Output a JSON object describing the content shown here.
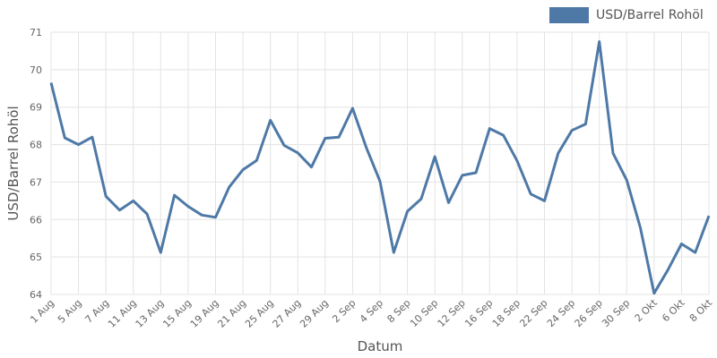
{
  "chart_data": {
    "type": "line",
    "xlabel": "Datum",
    "ylabel": "USD/Barrel Rohöl",
    "ylim": [
      64,
      71
    ],
    "yticks": [
      64,
      65,
      66,
      67,
      68,
      69,
      70,
      71
    ],
    "grid": true,
    "legend_position": "top-right",
    "x_tick_labels": [
      "1 Aug",
      "5 Aug",
      "7 Aug",
      "11 Aug",
      "13 Aug",
      "15 Aug",
      "19 Aug",
      "21 Aug",
      "25 Aug",
      "27 Aug",
      "29 Aug",
      "2 Sep",
      "4 Sep",
      "8 Sep",
      "10 Sep",
      "12 Sep",
      "16 Sep",
      "18 Sep",
      "22 Sep",
      "24 Sep",
      "26 Sep",
      "30 Sep",
      "2 Okt",
      "6 Okt",
      "8 Okt"
    ],
    "series": [
      {
        "name": "USD/Barrel Rohöl",
        "color": "#4e79a7",
        "values": [
          69.65,
          68.18,
          68.0,
          68.2,
          66.62,
          66.25,
          66.5,
          66.15,
          65.12,
          66.65,
          66.35,
          66.12,
          66.06,
          66.87,
          67.33,
          67.58,
          68.65,
          67.98,
          67.78,
          67.4,
          68.17,
          68.2,
          68.97,
          67.92,
          67.02,
          65.12,
          66.22,
          66.55,
          67.68,
          66.45,
          67.18,
          67.25,
          68.43,
          68.25,
          67.57,
          66.68,
          66.5,
          67.77,
          68.38,
          68.55,
          70.75,
          67.77,
          67.05,
          65.78,
          64.03,
          64.65,
          65.35,
          65.12,
          66.1
        ]
      }
    ]
  }
}
